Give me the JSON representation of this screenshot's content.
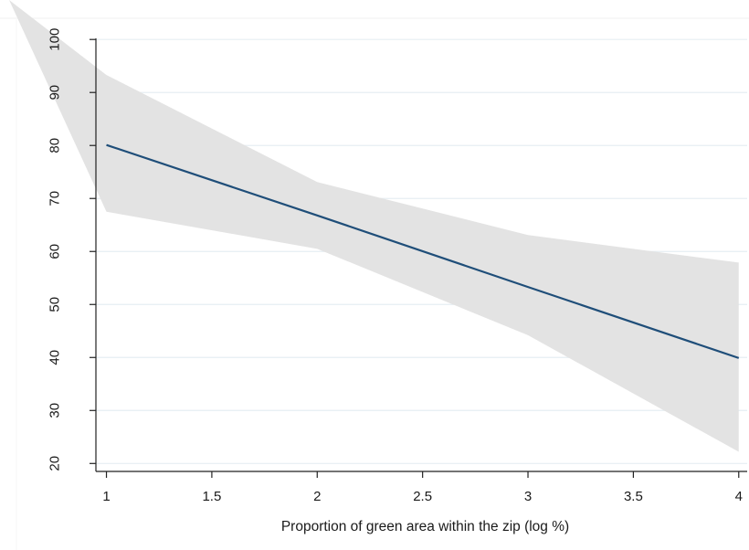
{
  "chart_data": {
    "type": "line",
    "title": "",
    "xlabel": "Proportion of green area within the zip (log %)",
    "ylabel": "",
    "xlim": [
      0.95,
      4.04
    ],
    "ylim": [
      18.5,
      104
    ],
    "x_ticks": [
      1,
      1.5,
      2,
      2.5,
      3,
      3.5,
      4
    ],
    "x_tick_labels": [
      "1",
      "1.5",
      "2",
      "2.5",
      "3",
      "3.5",
      "4"
    ],
    "y_ticks": [
      20,
      30,
      40,
      50,
      60,
      70,
      80,
      90,
      100
    ],
    "y_tick_labels": [
      "20",
      "30",
      "40",
      "50",
      "60",
      "70",
      "80",
      "90",
      "100"
    ],
    "grid": "horizontal",
    "legend": "none",
    "series": [
      {
        "x": [
          1,
          2,
          3,
          4
        ],
        "values": [
          80.1,
          66.8,
          53.3,
          39.9
        ],
        "ci_upper": [
          93.3,
          73.1,
          63.1,
          57.9
        ],
        "ci_lower": [
          67.5,
          60.5,
          44.2,
          22.2
        ]
      }
    ],
    "colors": {
      "line": "#1f4e79",
      "band": "#e3e3e3",
      "grid": "#e6eef2",
      "axis": "#222222"
    }
  }
}
